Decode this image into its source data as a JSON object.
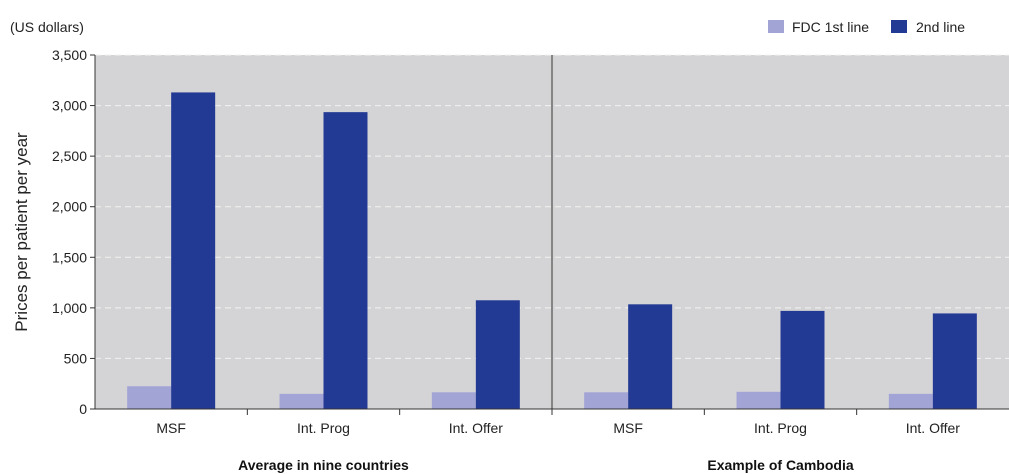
{
  "chart_data": {
    "type": "bar",
    "unit_label": "(US dollars)",
    "ylabel": "Prices per patient per year",
    "ylim": [
      0,
      3500
    ],
    "yticks": [
      0,
      500,
      1000,
      1500,
      2000,
      2500,
      3000,
      3500
    ],
    "ytick_labels": [
      "0",
      "500",
      "1,000",
      "1,500",
      "2,000",
      "2,500",
      "3,000",
      "3,500"
    ],
    "grid": true,
    "legend_position": "top-right",
    "groups": [
      {
        "label": "Average in nine countries",
        "categories": [
          "MSF",
          "Int. Prog",
          "Int. Offer"
        ]
      },
      {
        "label": "Example of Cambodia",
        "categories": [
          "MSF",
          "Int. Prog",
          "Int. Offer"
        ]
      }
    ],
    "series": [
      {
        "name": "FDC 1st line",
        "color": "#a3a4d6",
        "values": [
          225,
          150,
          165,
          165,
          170,
          150
        ]
      },
      {
        "name": "2nd line",
        "color": "#233a94",
        "values": [
          3130,
          2935,
          1075,
          1035,
          970,
          945
        ]
      }
    ],
    "colors": {
      "plot_background": "#d4d4d6",
      "grid": "#f2f2f2"
    }
  }
}
